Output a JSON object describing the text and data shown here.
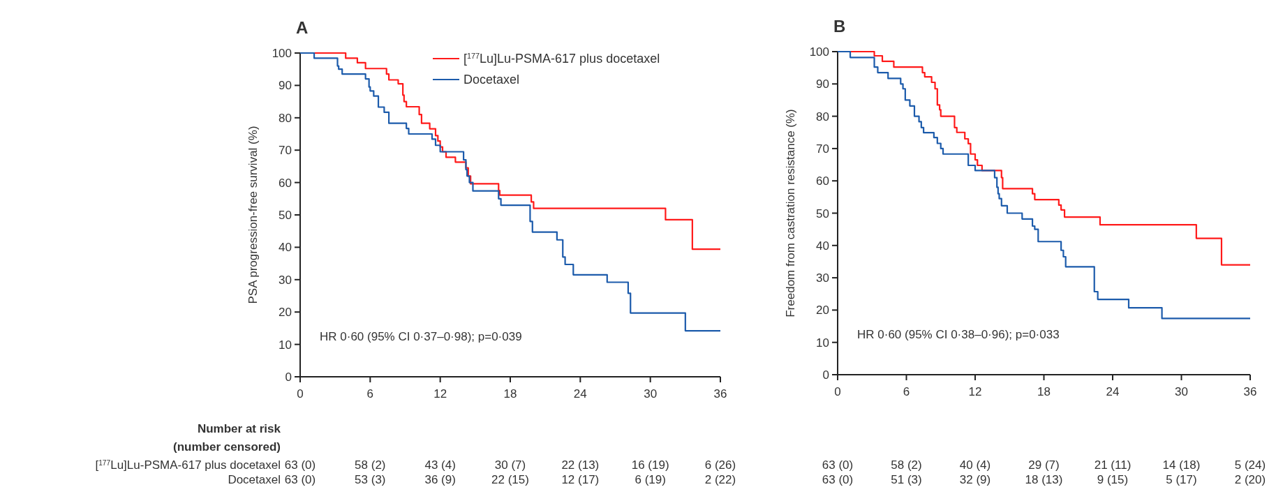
{
  "chart_data": [
    {
      "type": "step",
      "title": "A",
      "ylabel": "PSA progression-free survival (%)",
      "xlim": [
        0,
        36
      ],
      "xticks": [
        0,
        6,
        12,
        18,
        24,
        30,
        36
      ],
      "ylim": [
        0,
        100
      ],
      "yticks": [
        0,
        10,
        20,
        30,
        40,
        50,
        60,
        70,
        80,
        90,
        100
      ],
      "grid": false,
      "legend": "top",
      "line_style": "solid",
      "marker": "none",
      "series": [
        {
          "name": "[$^{177}$Lu]Lu-PSMA-617 plus docetaxel",
          "color": "#ff1a1a",
          "x": [
            0,
            3.9,
            4.9,
            5.6,
            7.4,
            7.6,
            8.4,
            8.8,
            8.9,
            9.1,
            10.2,
            10.4,
            11.1,
            11.6,
            11.8,
            12.0,
            12.2,
            12.5,
            13.3,
            14.2,
            14.4,
            14.6,
            17.0,
            17.1,
            19.8,
            20.0,
            31.3,
            33.6,
            36
          ],
          "values": [
            100,
            98.4,
            97,
            95.2,
            93.5,
            91.7,
            90.5,
            87,
            85,
            83.4,
            81,
            78.3,
            76.6,
            74.5,
            72.8,
            71,
            69.5,
            67.8,
            66.3,
            64.5,
            62,
            59.6,
            57.5,
            56.1,
            54,
            52,
            48.5,
            39.4,
            39.4
          ]
        },
        {
          "name": "Docetaxel",
          "color": "#1c5bab",
          "x": [
            0,
            1.2,
            3.2,
            3.3,
            3.6,
            5.6,
            5.9,
            6.0,
            6.3,
            6.7,
            7.2,
            7.6,
            9.1,
            9.3,
            11.3,
            11.6,
            12.0,
            14.0,
            14.2,
            14.3,
            14.5,
            14.8,
            17.0,
            17.2,
            19.7,
            19.9,
            22.0,
            22.5,
            22.7,
            23.4,
            26.3,
            28.1,
            28.3,
            33.0,
            36
          ],
          "values": [
            100,
            98.4,
            96,
            95,
            93.5,
            92,
            89.5,
            88.3,
            86.7,
            83.3,
            81.7,
            78.3,
            76.7,
            75,
            73.4,
            71.5,
            69.5,
            67,
            64,
            62,
            60,
            57.4,
            55,
            53,
            48,
            44.7,
            42.3,
            37,
            34.7,
            31.5,
            29.2,
            25.8,
            19.7,
            14.2,
            14.2
          ]
        }
      ],
      "annotations": [
        "HR 0·60 (95% CI 0·37–0·98); p=0·039",
        "Number at risk",
        "(number censored)",
        "[$^{177}$Lu]Lu-PSMA-617 plus docetaxel",
        "Docetaxel",
        "63 (0)",
        "58 (2)",
        "43 (4)",
        "30 (7)",
        "22 (13)",
        "16 (19)",
        "6 (26)",
        "63 (0)",
        "53 (3)",
        "36 (9)",
        "22 (15)",
        "12 (17)",
        "6 (19)",
        "2 (22)"
      ]
    },
    {
      "type": "step",
      "title": "B",
      "ylabel": "Freedom from castration resistance (%)",
      "xlim": [
        0,
        36
      ],
      "xticks": [
        0,
        6,
        12,
        18,
        24,
        30,
        36
      ],
      "ylim": [
        0,
        100
      ],
      "yticks": [
        0,
        10,
        20,
        30,
        40,
        50,
        60,
        70,
        80,
        90,
        100
      ],
      "grid": false,
      "legend": false,
      "line_style": "solid",
      "marker": "none",
      "series": [
        {
          "color": "#ff1a1a",
          "x": [
            0,
            3.2,
            3.9,
            4.9,
            7.4,
            7.6,
            8.2,
            8.5,
            8.7,
            8.9,
            9.0,
            10.2,
            10.4,
            11.1,
            11.4,
            11.6,
            12.0,
            12.2,
            12.6,
            14.3,
            14.4,
            17.0,
            17.2,
            19.3,
            19.5,
            19.8,
            22.9,
            31.3,
            33.5,
            36
          ],
          "values": [
            100,
            98.7,
            97,
            95.2,
            93.5,
            92.2,
            90.5,
            88.5,
            83.5,
            82,
            80,
            76.5,
            75,
            73,
            71.5,
            68.3,
            66.5,
            64.8,
            63.2,
            61,
            57.6,
            56,
            54.2,
            52.5,
            51,
            48.8,
            46.4,
            42.2,
            34,
            34
          ]
        },
        {
          "color": "#1c5bab",
          "x": [
            0,
            1.1,
            3.2,
            3.5,
            4.4,
            5.5,
            5.7,
            5.9,
            6.3,
            6.7,
            7.1,
            7.3,
            7.5,
            8.4,
            8.7,
            9.0,
            9.2,
            11.4,
            12.0,
            13.7,
            13.9,
            14.0,
            14.1,
            14.3,
            14.8,
            16.1,
            17.0,
            17.2,
            17.5,
            19.5,
            19.7,
            19.9,
            22.4,
            22.7,
            25.4,
            28.3,
            36
          ],
          "values": [
            100,
            98.2,
            95.2,
            93.5,
            91.7,
            90,
            88.5,
            85,
            83.2,
            80,
            78.3,
            76.5,
            74.9,
            73.4,
            71.6,
            70,
            68.3,
            64.8,
            63.2,
            61,
            58,
            56,
            54.5,
            52.3,
            50,
            48.2,
            46,
            45,
            41.2,
            38.5,
            36.5,
            33.4,
            25.7,
            23.3,
            20.7,
            17.4,
            17.4
          ]
        }
      ],
      "annotations": [
        "HR 0·60 (95% CI 0·38–0·96); p=0·033",
        "63 (0)",
        "58 (2)",
        "40 (4)",
        "29 (7)",
        "21 (11)",
        "14 (18)",
        "5 (24)",
        "63 (0)",
        "51 (3)",
        "32 (9)",
        "18 (13)",
        "9 (15)",
        "5 (17)",
        "2 (20)"
      ]
    }
  ]
}
